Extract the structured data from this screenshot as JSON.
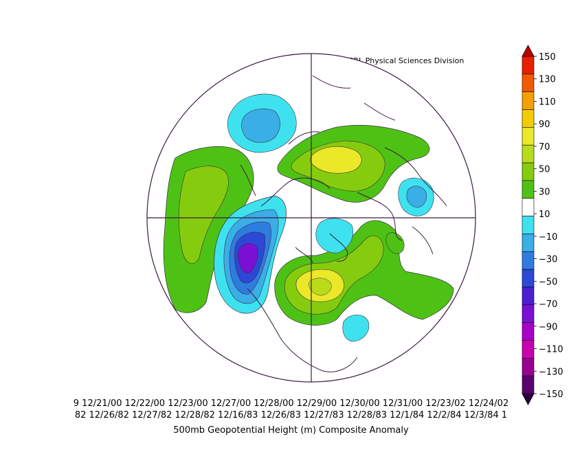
{
  "header": {
    "credit": "NOAA/ESRL Physical Sciences Division"
  },
  "caption": "500mb Geopotential Height (m) Composite Anomaly",
  "dates": {
    "row1": "9 12/21/00 12/22/00 12/23/00 12/27/00 12/28/00 12/29/00 12/30/00 12/31/00 12/23/02 12/24/02",
    "row2": "82 12/26/82 12/27/82 12/28/82 12/16/83 12/26/83 12/27/83 12/28/83 12/1/84 12/2/84 12/3/84 1"
  },
  "colorbar": {
    "labels": [
      "150",
      "130",
      "110",
      "90",
      "70",
      "50",
      "30",
      "10",
      "-10",
      "-30",
      "-50",
      "-70",
      "-90",
      "-110",
      "-130",
      "-150"
    ],
    "colors": [
      "#c00000",
      "#e82000",
      "#f25a00",
      "#f5a000",
      "#f2cc00",
      "#ebe82a",
      "#b9dc1a",
      "#86cc0e",
      "#4ec214",
      "#ffffff",
      "#3ee2ef",
      "#3aaee6",
      "#2f7ce0",
      "#2c48d6",
      "#4a20d2",
      "#7a10d4",
      "#a800c8",
      "#c800b0",
      "#990090",
      "#5a0070",
      "#2a0040"
    ]
  },
  "map": {
    "projection": "north-polar-stereographic",
    "anomaly_centers": [
      {
        "sign": "positive",
        "max_level": 50,
        "region": "northern Siberia / Arctic Ocean"
      },
      {
        "sign": "positive",
        "max_level": 50,
        "region": "eastern North America / Great Lakes"
      },
      {
        "sign": "positive",
        "max_level": 30,
        "region": "North Pacific"
      },
      {
        "sign": "negative",
        "max_level": -90,
        "region": "northeast Pacific / Gulf of Alaska"
      },
      {
        "sign": "negative",
        "max_level": -30,
        "region": "central Asia"
      },
      {
        "sign": "negative",
        "max_level": -30,
        "region": "Europe / North Atlantic"
      },
      {
        "sign": "negative",
        "max_level": -10,
        "region": "western Atlantic"
      }
    ]
  }
}
